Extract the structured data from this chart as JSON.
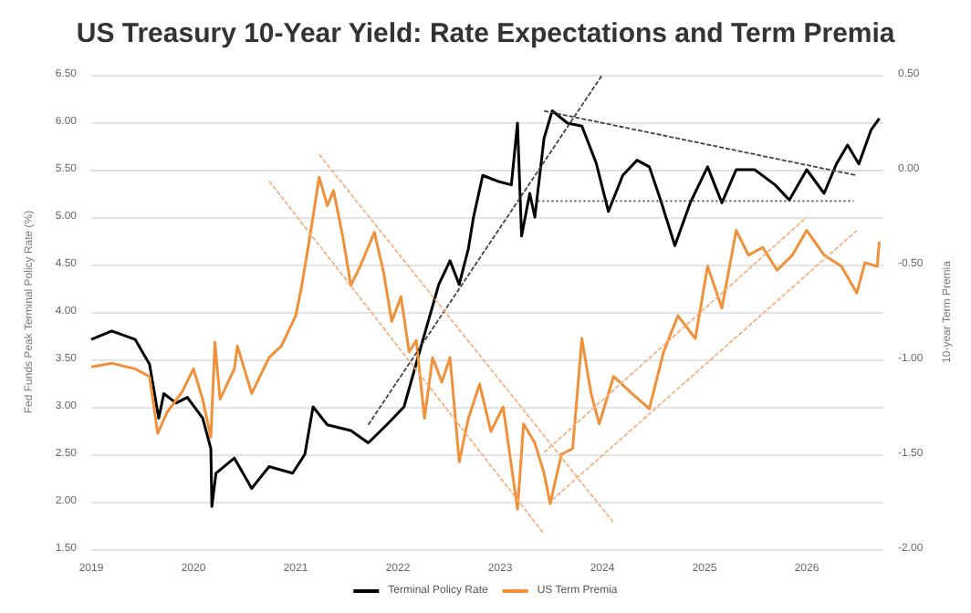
{
  "chart_data": {
    "type": "line",
    "title": "US Treasury 10-Year Yield: Rate Expectations and Term Premia",
    "ylabel": "Fed Funds Peak Terminal Policy Rate (%)",
    "y2label": "10-year Term Premia",
    "xlim": [
      2019,
      2026.75
    ],
    "xticks": [
      2019,
      2020,
      2021,
      2022,
      2023,
      2024,
      2025,
      2026
    ],
    "ylim": [
      1.5,
      6.5
    ],
    "yticks": [
      {
        "value": 1.5,
        "label": "1.50"
      },
      {
        "value": 2,
        "label": "2.00"
      },
      {
        "value": 2.5,
        "label": "2.50"
      },
      {
        "value": 3,
        "label": "3.00"
      },
      {
        "value": 3.5,
        "label": "3.50"
      },
      {
        "value": 4,
        "label": "4.00"
      },
      {
        "value": 4.5,
        "label": "4.50"
      },
      {
        "value": 5,
        "label": "5.00"
      },
      {
        "value": 5.5,
        "label": "5.50"
      },
      {
        "value": 6,
        "label": "6.00"
      },
      {
        "value": 6.5,
        "label": "6.50"
      }
    ],
    "y2lim": [
      -2,
      0.5
    ],
    "y2ticks": [
      {
        "value": -2,
        "label": "-2.00"
      },
      {
        "value": -1.5,
        "label": "-1.50"
      },
      {
        "value": -1,
        "label": "-1.00"
      },
      {
        "value": -0.5,
        "label": "-0.50"
      },
      {
        "value": 0,
        "label": "0.00"
      },
      {
        "value": 0.5,
        "label": "0.50"
      }
    ],
    "grid": "y",
    "legend": "bottom",
    "marker": "none",
    "line_style": "solid",
    "series": [
      {
        "name": "Terminal Policy Rate",
        "color": "#000000",
        "x": [
          2019.0,
          2019.2,
          2019.43,
          2019.57,
          2019.66,
          2019.71,
          2019.83,
          2019.94,
          2020.09,
          2020.17,
          2020.18,
          2020.22,
          2020.4,
          2020.57,
          2020.74,
          2020.97,
          2021.09,
          2021.17,
          2021.31,
          2021.54,
          2021.71,
          2021.89,
          2022.06,
          2022.23,
          2022.4,
          2022.51,
          2022.6,
          2022.69,
          2022.74,
          2022.83,
          2022.97,
          2023.11,
          2023.17,
          2023.21,
          2023.29,
          2023.34,
          2023.43,
          2023.51,
          2023.66,
          2023.8,
          2023.94,
          2024.06,
          2024.2,
          2024.34,
          2024.46,
          2024.57,
          2024.71,
          2024.86,
          2025.03,
          2025.17,
          2025.31,
          2025.49,
          2025.69,
          2025.83,
          2026.0,
          2026.17,
          2026.29,
          2026.4,
          2026.51,
          2026.63,
          2026.71
        ],
        "values": [
          3.71,
          3.8,
          3.71,
          3.45,
          2.88,
          3.14,
          3.04,
          3.1,
          2.88,
          2.56,
          1.95,
          2.3,
          2.46,
          2.14,
          2.37,
          2.3,
          2.5,
          3.0,
          2.81,
          2.75,
          2.62,
          2.81,
          3.0,
          3.65,
          4.29,
          4.54,
          4.29,
          4.67,
          5.0,
          5.44,
          5.38,
          5.34,
          5.99,
          4.8,
          5.25,
          5.0,
          5.83,
          6.12,
          5.99,
          5.96,
          5.57,
          5.06,
          5.44,
          5.6,
          5.53,
          5.18,
          4.7,
          5.15,
          5.53,
          5.15,
          5.5,
          5.5,
          5.34,
          5.18,
          5.5,
          5.25,
          5.56,
          5.76,
          5.56,
          5.92,
          6.04
        ]
      },
      {
        "name": "US Term Premia",
        "color": "#f0913a",
        "axis": "y2",
        "x": [
          2019.0,
          2019.2,
          2019.43,
          2019.57,
          2019.65,
          2019.74,
          2019.89,
          2020.0,
          2020.09,
          2020.17,
          2020.21,
          2020.26,
          2020.4,
          2020.43,
          2020.57,
          2020.74,
          2020.86,
          2021.0,
          2021.06,
          2021.14,
          2021.23,
          2021.31,
          2021.37,
          2021.46,
          2021.54,
          2021.63,
          2021.77,
          2021.86,
          2021.94,
          2022.03,
          2022.11,
          2022.18,
          2022.26,
          2022.34,
          2022.43,
          2022.51,
          2022.6,
          2022.69,
          2022.8,
          2022.91,
          2023.03,
          2023.17,
          2023.23,
          2023.34,
          2023.43,
          2023.49,
          2023.6,
          2023.71,
          2023.8,
          2023.89,
          2023.97,
          2024.11,
          2024.29,
          2024.46,
          2024.6,
          2024.74,
          2024.91,
          2025.03,
          2025.17,
          2025.31,
          2025.43,
          2025.57,
          2025.71,
          2025.86,
          2026.0,
          2026.17,
          2026.34,
          2026.49,
          2026.57,
          2026.69,
          2026.71
        ],
        "values": [
          -1.04,
          -1.02,
          -1.05,
          -1.09,
          -1.39,
          -1.28,
          -1.17,
          -1.05,
          -1.21,
          -1.41,
          -0.91,
          -1.21,
          -1.05,
          -0.93,
          -1.18,
          -0.99,
          -0.93,
          -0.77,
          -0.61,
          -0.35,
          -0.04,
          -0.19,
          -0.11,
          -0.35,
          -0.61,
          -0.51,
          -0.33,
          -0.54,
          -0.8,
          -0.67,
          -0.96,
          -0.9,
          -1.31,
          -0.99,
          -1.12,
          -0.99,
          -1.54,
          -1.31,
          -1.13,
          -1.38,
          -1.25,
          -1.79,
          -1.34,
          -1.44,
          -1.6,
          -1.76,
          -1.5,
          -1.47,
          -0.89,
          -1.18,
          -1.34,
          -1.09,
          -1.18,
          -1.26,
          -0.96,
          -0.77,
          -0.89,
          -0.51,
          -0.73,
          -0.32,
          -0.45,
          -0.41,
          -0.53,
          -0.45,
          -0.32,
          -0.45,
          -0.51,
          -0.65,
          -0.49,
          -0.51,
          -0.38
        ]
      },
      {
        "color": "#444444",
        "line_style": "dashed",
        "x": [
          2021.71,
          2024.0
        ],
        "values": [
          2.81,
          6.5
        ]
      },
      {
        "color": "#444444",
        "line_style": "dashed",
        "x": [
          2023.43,
          2026.49
        ],
        "values": [
          6.12,
          5.44
        ]
      },
      {
        "color": "#444444",
        "line_style": "dotted",
        "x": [
          2023.37,
          2026.46
        ],
        "values": [
          5.17,
          5.17
        ]
      },
      {
        "color": "#f4b183",
        "line_style": "dashed",
        "axis": "y2",
        "x": [
          2021.23,
          2024.11
        ],
        "values": [
          0.08,
          -1.86
        ]
      },
      {
        "color": "#f4b183",
        "line_style": "dashed",
        "axis": "y2",
        "x": [
          2020.74,
          2023.43
        ],
        "values": [
          -0.06,
          -1.92
        ]
      },
      {
        "color": "#f4b183",
        "line_style": "dashed",
        "axis": "y2",
        "x": [
          2023.51,
          2026.49
        ],
        "values": [
          -1.74,
          -0.32
        ]
      },
      {
        "color": "#f4b183",
        "line_style": "dashed",
        "axis": "y2",
        "x": [
          2023.43,
          2026.0
        ],
        "values": [
          -1.49,
          -0.25
        ]
      }
    ]
  }
}
